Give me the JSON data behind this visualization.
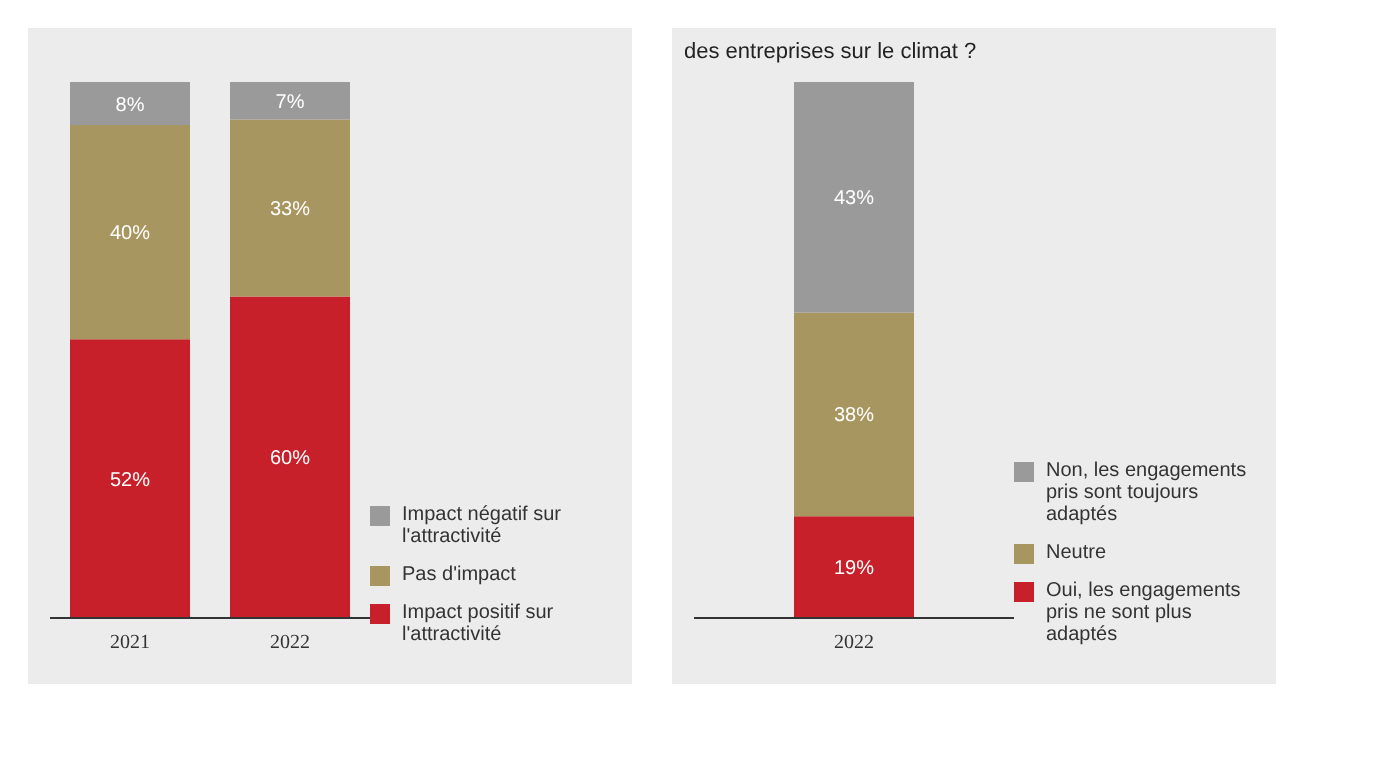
{
  "chart_data": [
    {
      "type": "bar",
      "stacked": true,
      "categories": [
        "2021",
        "2022"
      ],
      "legend": "bottom right",
      "series": [
        {
          "name": "Impact positif sur l'attractivité",
          "color": "#c8202a",
          "values": [
            52,
            60
          ],
          "value_labels": [
            "52%",
            "60%"
          ]
        },
        {
          "name": "Pas d'impact",
          "color": "#a89660",
          "values": [
            40,
            33
          ],
          "value_labels": [
            "40%",
            "33%"
          ]
        },
        {
          "name": "Impact négatif sur l'attractivité",
          "color": "#9a9a9a",
          "values": [
            8,
            7
          ],
          "value_labels": [
            "8%",
            "7%"
          ]
        }
      ]
    },
    {
      "type": "bar",
      "stacked": true,
      "title": "des entreprises sur le climat ?",
      "categories": [
        "2022"
      ],
      "legend": "bottom right",
      "series": [
        {
          "name": "Oui, les engagements pris ne sont plus adaptés",
          "color": "#c8202a",
          "values": [
            19
          ],
          "value_labels": [
            "19%"
          ]
        },
        {
          "name": "Neutre",
          "color": "#a89660",
          "values": [
            38
          ],
          "value_labels": [
            "38%"
          ]
        },
        {
          "name": "Non, les engagements pris sont toujours adaptés",
          "color": "#9a9a9a",
          "values": [
            43
          ],
          "value_labels": [
            "43%"
          ]
        }
      ]
    }
  ]
}
